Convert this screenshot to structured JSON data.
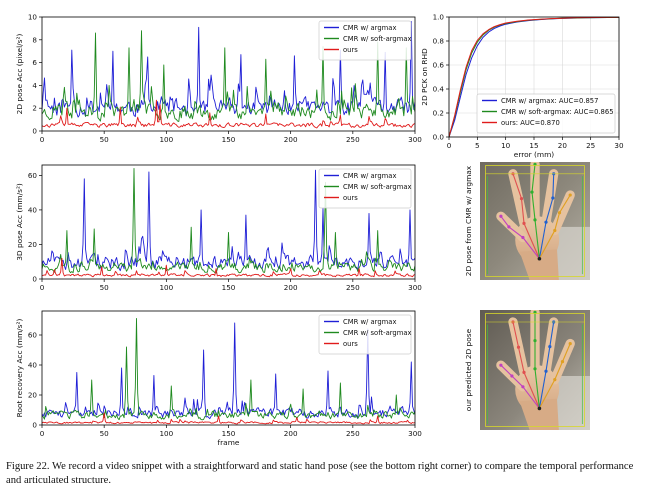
{
  "caption": "Figure 22. We record a video snippet with a straightforward and static hand pose (see the bottom right corner) to compare the temporal performance and articulated structure.",
  "colors": {
    "argmax": "#1f1fd6",
    "soft": "#1f8a1f",
    "ours": "#e01b1b"
  },
  "chart_data": [
    {
      "id": "pose2d",
      "type": "line",
      "xlabel": "",
      "ylabel": "2D pose Acc (pixel/s²)",
      "xlim": [
        0,
        300
      ],
      "ylim": [
        0,
        10
      ],
      "xticks": [
        0,
        50,
        100,
        150,
        200,
        250,
        300
      ],
      "yticks": [
        0,
        2,
        4,
        6,
        8,
        10
      ],
      "legend_position": "top-right",
      "series": [
        {
          "name": "CMR w/ argmax",
          "color": "argmax",
          "seed": 11,
          "base": 2.4,
          "noise": 2.4,
          "spike_p": 0.12,
          "spike": 4.0,
          "peaks": [
            [
              24,
              7.1
            ],
            [
              57,
              7.0
            ],
            [
              85,
              6.5
            ],
            [
              126,
              9.1
            ],
            [
              160,
              6.7
            ],
            [
              203,
              6.6
            ],
            [
              240,
              7.1
            ],
            [
              276,
              6.9
            ],
            [
              297,
              9.6
            ]
          ]
        },
        {
          "name": "CMR w/ soft-argmax",
          "color": "soft",
          "seed": 23,
          "base": 1.9,
          "noise": 2.0,
          "spike_p": 0.09,
          "spike": 4.0,
          "peaks": [
            [
              43,
              8.6
            ],
            [
              70,
              7.3
            ],
            [
              80,
              8.8
            ],
            [
              98,
              5.8
            ],
            [
              147,
              7.3
            ],
            [
              180,
              6.3
            ],
            [
              226,
              7.4
            ],
            [
              270,
              7.8
            ],
            [
              293,
              7.3
            ]
          ]
        },
        {
          "name": "ours",
          "color": "ours",
          "seed": 37,
          "base": 0.6,
          "noise": 0.6,
          "spike_p": 0.05,
          "spike": 1.4,
          "peaks": [
            [
              20,
              2.0
            ],
            [
              63,
              2.1
            ],
            [
              92,
              2.7
            ],
            [
              95,
              2.3
            ],
            [
              135,
              1.6
            ],
            [
              180,
              1.5
            ],
            [
              240,
              1.4
            ]
          ]
        }
      ]
    },
    {
      "id": "pose3d",
      "type": "line",
      "xlabel": "",
      "ylabel": "3D pose Acc (mm/s²)",
      "xlim": [
        0,
        300
      ],
      "ylim": [
        0,
        66
      ],
      "xticks": [
        0,
        50,
        100,
        150,
        200,
        250,
        300
      ],
      "yticks": [
        0,
        20,
        40,
        60
      ],
      "legend_position": "top-right",
      "series": [
        {
          "name": "CMR w/ argmax",
          "color": "argmax",
          "seed": 51,
          "base": 10,
          "noise": 12,
          "spike_p": 0.14,
          "spike": 18,
          "peaks": [
            [
              34,
              58
            ],
            [
              86,
              62
            ],
            [
              128,
              40
            ],
            [
              164,
              37
            ],
            [
              220,
              63
            ],
            [
              226,
              41
            ],
            [
              263,
              38
            ],
            [
              296,
              40
            ]
          ]
        },
        {
          "name": "CMR w/ soft-argmax",
          "color": "soft",
          "seed": 63,
          "base": 7,
          "noise": 9,
          "spike_p": 0.08,
          "spike": 14,
          "peaks": [
            [
              20,
              28
            ],
            [
              42,
              29
            ],
            [
              74,
              64
            ],
            [
              120,
              30
            ],
            [
              150,
              27
            ],
            [
              228,
              56
            ],
            [
              236,
              27
            ],
            [
              270,
              28
            ]
          ]
        },
        {
          "name": "ours",
          "color": "ours",
          "seed": 77,
          "base": 2.5,
          "noise": 2.5,
          "spike_p": 0.05,
          "spike": 6,
          "peaks": [
            [
              16,
              12
            ],
            [
              48,
              7
            ],
            [
              100,
              8
            ],
            [
              140,
              6
            ],
            [
              200,
              6
            ],
            [
              255,
              6
            ]
          ]
        }
      ]
    },
    {
      "id": "root",
      "type": "line",
      "xlabel": "frame",
      "ylabel": "Root recovery Acc (mm/s²)",
      "xlim": [
        0,
        300
      ],
      "ylim": [
        0,
        76
      ],
      "xticks": [
        0,
        50,
        100,
        150,
        200,
        250,
        300
      ],
      "yticks": [
        0,
        20,
        40,
        60
      ],
      "legend_position": "top-right",
      "series": [
        {
          "name": "CMR w/ argmax",
          "color": "argmax",
          "seed": 91,
          "base": 9,
          "noise": 10,
          "spike_p": 0.12,
          "spike": 15,
          "peaks": [
            [
              28,
              35
            ],
            [
              64,
              38
            ],
            [
              90,
              33
            ],
            [
              130,
              50
            ],
            [
              155,
              68
            ],
            [
              188,
              34
            ],
            [
              230,
              36
            ],
            [
              262,
              64
            ],
            [
              297,
              42
            ]
          ]
        },
        {
          "name": "CMR w/ soft-argmax",
          "color": "soft",
          "seed": 103,
          "base": 7,
          "noise": 8,
          "spike_p": 0.08,
          "spike": 12,
          "peaks": [
            [
              40,
              30
            ],
            [
              68,
              52
            ],
            [
              76,
              71
            ],
            [
              104,
              26
            ],
            [
              168,
              30
            ],
            [
              210,
              24
            ],
            [
              240,
              28
            ],
            [
              285,
              20
            ]
          ]
        },
        {
          "name": "ours",
          "color": "ours",
          "seed": 117,
          "base": 1.5,
          "noise": 2,
          "spike_p": 0.04,
          "spike": 5,
          "peaks": [
            [
              50,
              8
            ],
            [
              142,
              6
            ],
            [
              205,
              5
            ],
            [
              270,
              6
            ]
          ]
        }
      ]
    },
    {
      "id": "pck",
      "type": "line",
      "xlabel": "error (mm)",
      "ylabel": "2D PCK on RHD",
      "xlim": [
        0,
        30
      ],
      "ylim": [
        0,
        1.0
      ],
      "xticks": [
        0,
        5,
        10,
        15,
        20,
        25,
        30
      ],
      "yticks": [
        0.0,
        0.2,
        0.4,
        0.6,
        0.8,
        1.0
      ],
      "grid": true,
      "legend_position": "bottom-right",
      "series": [
        {
          "name": "CMR w/ argmax: AUC=0.857",
          "color": "argmax",
          "x": [
            0,
            1,
            2,
            3,
            4,
            5,
            6,
            7,
            8,
            9,
            10,
            12,
            14,
            16,
            18,
            20,
            22,
            24,
            26,
            28,
            30
          ],
          "y": [
            0.0,
            0.14,
            0.33,
            0.52,
            0.66,
            0.76,
            0.83,
            0.875,
            0.905,
            0.925,
            0.94,
            0.958,
            0.97,
            0.978,
            0.984,
            0.988,
            0.991,
            0.993,
            0.995,
            0.996,
            0.997
          ]
        },
        {
          "name": "CMR w/ soft-argmax: AUC=0.865",
          "color": "soft",
          "x": [
            0,
            1,
            2,
            3,
            4,
            5,
            6,
            7,
            8,
            9,
            10,
            12,
            14,
            16,
            18,
            20,
            22,
            24,
            26,
            28,
            30
          ],
          "y": [
            0.0,
            0.17,
            0.37,
            0.56,
            0.7,
            0.79,
            0.85,
            0.89,
            0.915,
            0.933,
            0.946,
            0.962,
            0.973,
            0.98,
            0.986,
            0.99,
            0.992,
            0.994,
            0.995,
            0.996,
            0.997
          ]
        },
        {
          "name": "ours: AUC=0.870",
          "color": "ours",
          "x": [
            0,
            1,
            2,
            3,
            4,
            5,
            6,
            7,
            8,
            9,
            10,
            12,
            14,
            16,
            18,
            20,
            22,
            24,
            26,
            28,
            30
          ],
          "y": [
            0.0,
            0.18,
            0.39,
            0.58,
            0.72,
            0.805,
            0.86,
            0.895,
            0.92,
            0.937,
            0.95,
            0.965,
            0.975,
            0.982,
            0.987,
            0.99,
            0.993,
            0.995,
            0.996,
            0.997,
            0.998
          ]
        }
      ]
    }
  ],
  "images": [
    {
      "id": "hand1",
      "label": "2D pose from CMR w/ argmax"
    },
    {
      "id": "hand2",
      "label": "our predicted 2D pose"
    }
  ]
}
